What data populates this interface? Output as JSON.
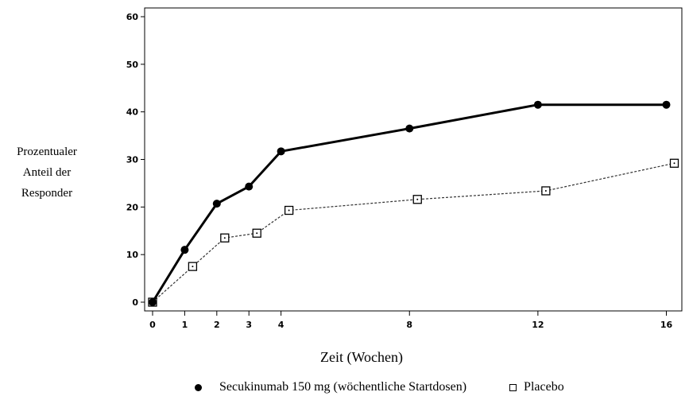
{
  "chart_data": {
    "type": "line",
    "xlabel": "Zeit (Wochen)",
    "ylabel": [
      "Prozentualer",
      "Anteil der",
      "Responder"
    ],
    "xlim": [
      0,
      16
    ],
    "ylim": [
      0,
      60
    ],
    "x_ticks": [
      "0",
      "1",
      "2",
      "3",
      "4",
      "8",
      "12",
      "16"
    ],
    "y_ticks": [
      "0",
      "10",
      "20",
      "30",
      "40",
      "50",
      "60"
    ],
    "grid": false,
    "legend_position": "bottom",
    "series": [
      {
        "name": "Secukinumab 150 mg (wöchentliche Startdosen)",
        "marker": "filled-circle",
        "line": "solid",
        "color": "#000000",
        "x": [
          0,
          1,
          2,
          3,
          4,
          8,
          12,
          16
        ],
        "y": [
          0,
          11,
          20.7,
          24.3,
          31.7,
          36.5,
          41.5,
          41.5
        ]
      },
      {
        "name": "Placebo",
        "marker": "open-square",
        "line": "dashed",
        "color": "#000000",
        "x": [
          0,
          1,
          2,
          3,
          4,
          8,
          12,
          16
        ],
        "y": [
          0,
          7.5,
          13.5,
          14.5,
          19.3,
          21.6,
          23.4,
          29.2
        ]
      }
    ]
  }
}
